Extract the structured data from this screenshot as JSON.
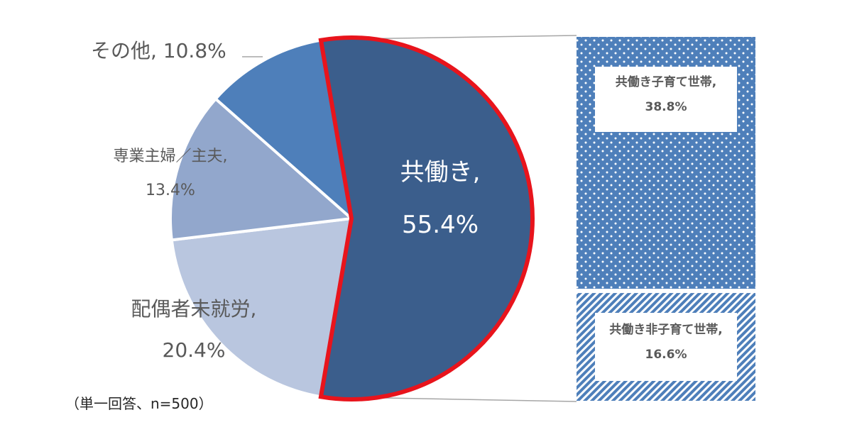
{
  "chart_data": [
    {
      "type": "pie",
      "slices": [
        {
          "name": "共働き",
          "value": 55.4,
          "label_line1": "共働き,",
          "label_line2": "55.4%",
          "color": "#3b5e8c",
          "highlighted": true,
          "highlight_color": "#e8141c"
        },
        {
          "name": "配偶者未就労",
          "value": 20.4,
          "label_line1": "配偶者未就労,",
          "label_line2": "20.4%",
          "color": "#b9c6df"
        },
        {
          "name": "専業主婦／主夫",
          "value": 13.4,
          "label_line1": "専業主婦／主夫,",
          "label_line2": "13.4%",
          "color": "#92a7cc"
        },
        {
          "name": "その他",
          "value": 10.8,
          "label_line1": "その他,",
          "label_line2": " 10.8%",
          "color": "#4e7fba"
        }
      ]
    },
    {
      "type": "bar",
      "stacked": true,
      "categories": [
        "共働き"
      ],
      "series": [
        {
          "name": "共働き子育て世帯",
          "value": 38.8,
          "label_line1": "共働き子育て世帯,",
          "label_line2": "38.8%",
          "pattern": "dots",
          "color": "#4e7fba"
        },
        {
          "name": "共働き非子育て世帯",
          "value": 16.6,
          "label_line1": "共働き非子育て世帯,",
          "label_line2": "16.6%",
          "pattern": "diagonal-stripes",
          "color": "#4e7fba"
        }
      ]
    }
  ],
  "note": "（単一回答、n=500）"
}
